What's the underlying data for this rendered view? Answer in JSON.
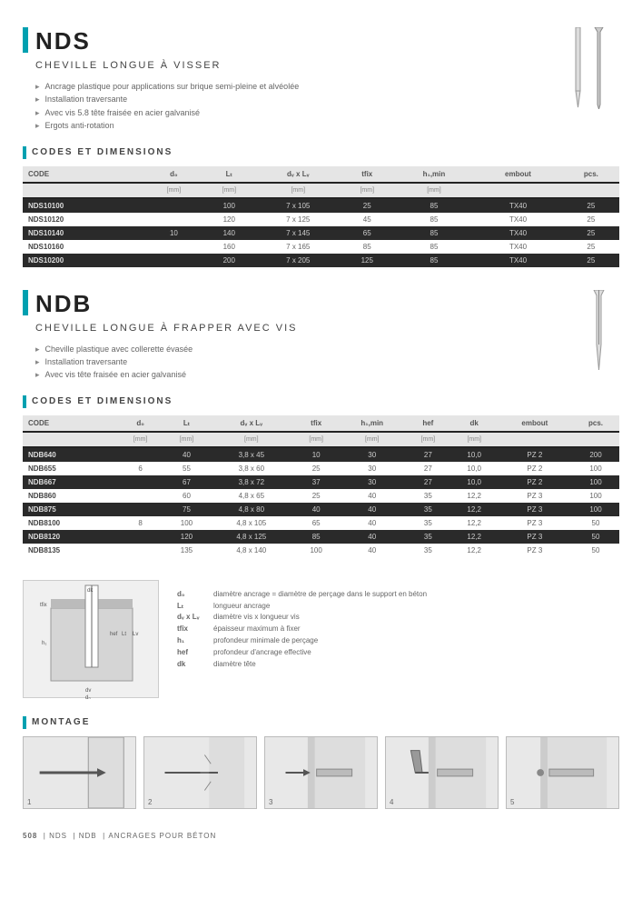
{
  "nds": {
    "title": "NDS",
    "subtitle": "CHEVILLE LONGUE À VISSER",
    "bullets": [
      "Ancrage plastique pour applications sur brique semi-pleine et alvéolée",
      "Installation traversante",
      "Avec vis 5.8 tête fraisée en acier galvanisé",
      "Ergots anti-rotation"
    ],
    "tableTitle": "CODES ET DIMENSIONS",
    "headers": [
      "CODE",
      "d₀",
      "Lₜ",
      "dᵥ x Lᵥ",
      "tfix",
      "h₁,min",
      "embout",
      "pcs."
    ],
    "units": [
      "",
      "[mm]",
      "[mm]",
      "[mm]",
      "[mm]",
      "[mm]",
      "",
      ""
    ],
    "rows": [
      {
        "dark": true,
        "cells": [
          "NDS10100",
          "",
          "100",
          "7 x 105",
          "25",
          "85",
          "TX40",
          "25"
        ]
      },
      {
        "dark": false,
        "cells": [
          "NDS10120",
          "",
          "120",
          "7 x 125",
          "45",
          "85",
          "TX40",
          "25"
        ]
      },
      {
        "dark": true,
        "cells": [
          "NDS10140",
          "10",
          "140",
          "7 x 145",
          "65",
          "85",
          "TX40",
          "25"
        ]
      },
      {
        "dark": false,
        "cells": [
          "NDS10160",
          "",
          "160",
          "7 x 165",
          "85",
          "85",
          "TX40",
          "25"
        ]
      },
      {
        "dark": true,
        "cells": [
          "NDS10200",
          "",
          "200",
          "7 x 205",
          "125",
          "85",
          "TX40",
          "25"
        ]
      }
    ]
  },
  "ndb": {
    "title": "NDB",
    "subtitle": "CHEVILLE LONGUE À FRAPPER AVEC VIS",
    "bullets": [
      "Cheville plastique avec collerette évasée",
      "Installation traversante",
      "Avec vis tête fraisée en acier galvanisé"
    ],
    "tableTitle": "CODES ET DIMENSIONS",
    "headers": [
      "CODE",
      "d₀",
      "Lₜ",
      "dᵥ x Lᵥ",
      "tfix",
      "h₁,min",
      "hef",
      "dk",
      "embout",
      "pcs."
    ],
    "units": [
      "",
      "[mm]",
      "[mm]",
      "[mm]",
      "[mm]",
      "[mm]",
      "[mm]",
      "[mm]",
      "",
      ""
    ],
    "rows": [
      {
        "dark": true,
        "cells": [
          "NDB640",
          "",
          "40",
          "3,8 x 45",
          "10",
          "30",
          "27",
          "10,0",
          "PZ 2",
          "200"
        ]
      },
      {
        "dark": false,
        "cells": [
          "NDB655",
          "6",
          "55",
          "3,8 x 60",
          "25",
          "30",
          "27",
          "10,0",
          "PZ 2",
          "100"
        ]
      },
      {
        "dark": true,
        "cells": [
          "NDB667",
          "",
          "67",
          "3,8 x 72",
          "37",
          "30",
          "27",
          "10,0",
          "PZ 2",
          "100"
        ]
      },
      {
        "dark": false,
        "cells": [
          "NDB860",
          "",
          "60",
          "4,8 x 65",
          "25",
          "40",
          "35",
          "12,2",
          "PZ 3",
          "100"
        ]
      },
      {
        "dark": true,
        "cells": [
          "NDB875",
          "",
          "75",
          "4,8 x 80",
          "40",
          "40",
          "35",
          "12,2",
          "PZ 3",
          "100"
        ]
      },
      {
        "dark": false,
        "cells": [
          "NDB8100",
          "8",
          "100",
          "4,8 x 105",
          "65",
          "40",
          "35",
          "12,2",
          "PZ 3",
          "50"
        ]
      },
      {
        "dark": true,
        "cells": [
          "NDB8120",
          "",
          "120",
          "4,8 x 125",
          "85",
          "40",
          "35",
          "12,2",
          "PZ 3",
          "50"
        ]
      },
      {
        "dark": false,
        "cells": [
          "NDB8135",
          "",
          "135",
          "4,8 x 140",
          "100",
          "40",
          "35",
          "12,2",
          "PZ 3",
          "50"
        ]
      }
    ]
  },
  "legend": {
    "d0": "diamètre ancrage = diamètre de perçage dans le support en béton",
    "Lt": "longueur ancrage",
    "dvLv": "diamètre vis x longueur vis",
    "tfix": "épaisseur maximum à fixer",
    "h1": "profondeur minimale de perçage",
    "hef": "profondeur d'ancrage effective",
    "dk": "diamètre tête"
  },
  "montage": {
    "title": "MONTAGE",
    "steps": [
      "1",
      "2",
      "3",
      "4",
      "5"
    ]
  },
  "footer": {
    "page": "508",
    "p1": "NDS",
    "p2": "NDB",
    "cat": "ANCRAGES POUR BÉTON"
  }
}
